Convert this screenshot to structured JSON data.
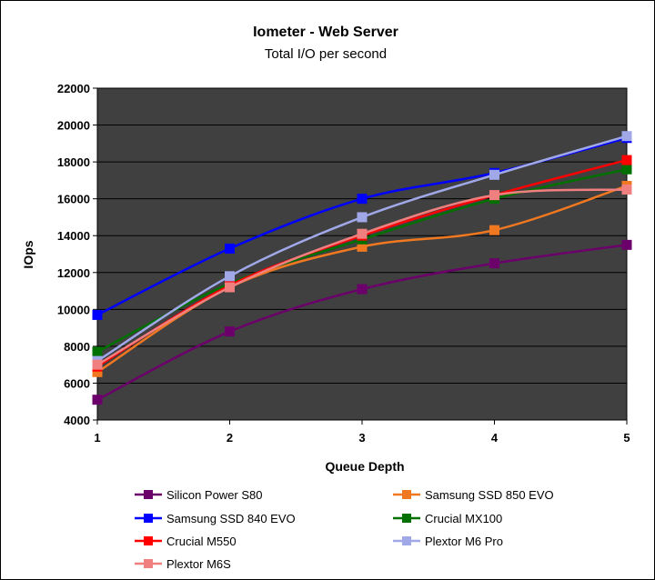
{
  "chart_data": {
    "type": "line",
    "title": "Iometer - Web Server",
    "subtitle": "Total I/O per second",
    "xlabel": "Queue Depth",
    "ylabel": "IOps",
    "x": [
      1,
      2,
      3,
      4,
      5
    ],
    "ylim": [
      4000,
      22000
    ],
    "yticks": [
      4000,
      6000,
      8000,
      10000,
      12000,
      14000,
      16000,
      18000,
      20000,
      22000
    ],
    "grid": true,
    "plot_background": "#404040",
    "grid_color": "#000000",
    "legend_position": "bottom",
    "series": [
      {
        "name": "Silicon Power S80",
        "color": "#6B006B",
        "values": [
          5100,
          8800,
          11100,
          12500,
          13500
        ]
      },
      {
        "name": "Samsung SSD 850 EVO",
        "color": "#F07820",
        "values": [
          6600,
          11200,
          13400,
          14300,
          16700
        ]
      },
      {
        "name": "Samsung SSD 840 EVO",
        "color": "#0000FF",
        "values": [
          9700,
          13300,
          16000,
          17400,
          19300
        ]
      },
      {
        "name": "Crucial MX100",
        "color": "#007000",
        "values": [
          7700,
          11400,
          13800,
          16000,
          17600
        ]
      },
      {
        "name": "Crucial M550",
        "color": "#FF0000",
        "values": [
          6900,
          11300,
          14000,
          16200,
          18100
        ]
      },
      {
        "name": "Plextor M6 Pro",
        "color": "#A0A8E8",
        "values": [
          7200,
          11800,
          15000,
          17300,
          19400
        ]
      },
      {
        "name": "Plextor M6S",
        "color": "#F08080",
        "values": [
          7000,
          11200,
          14100,
          16200,
          16500
        ]
      }
    ]
  }
}
